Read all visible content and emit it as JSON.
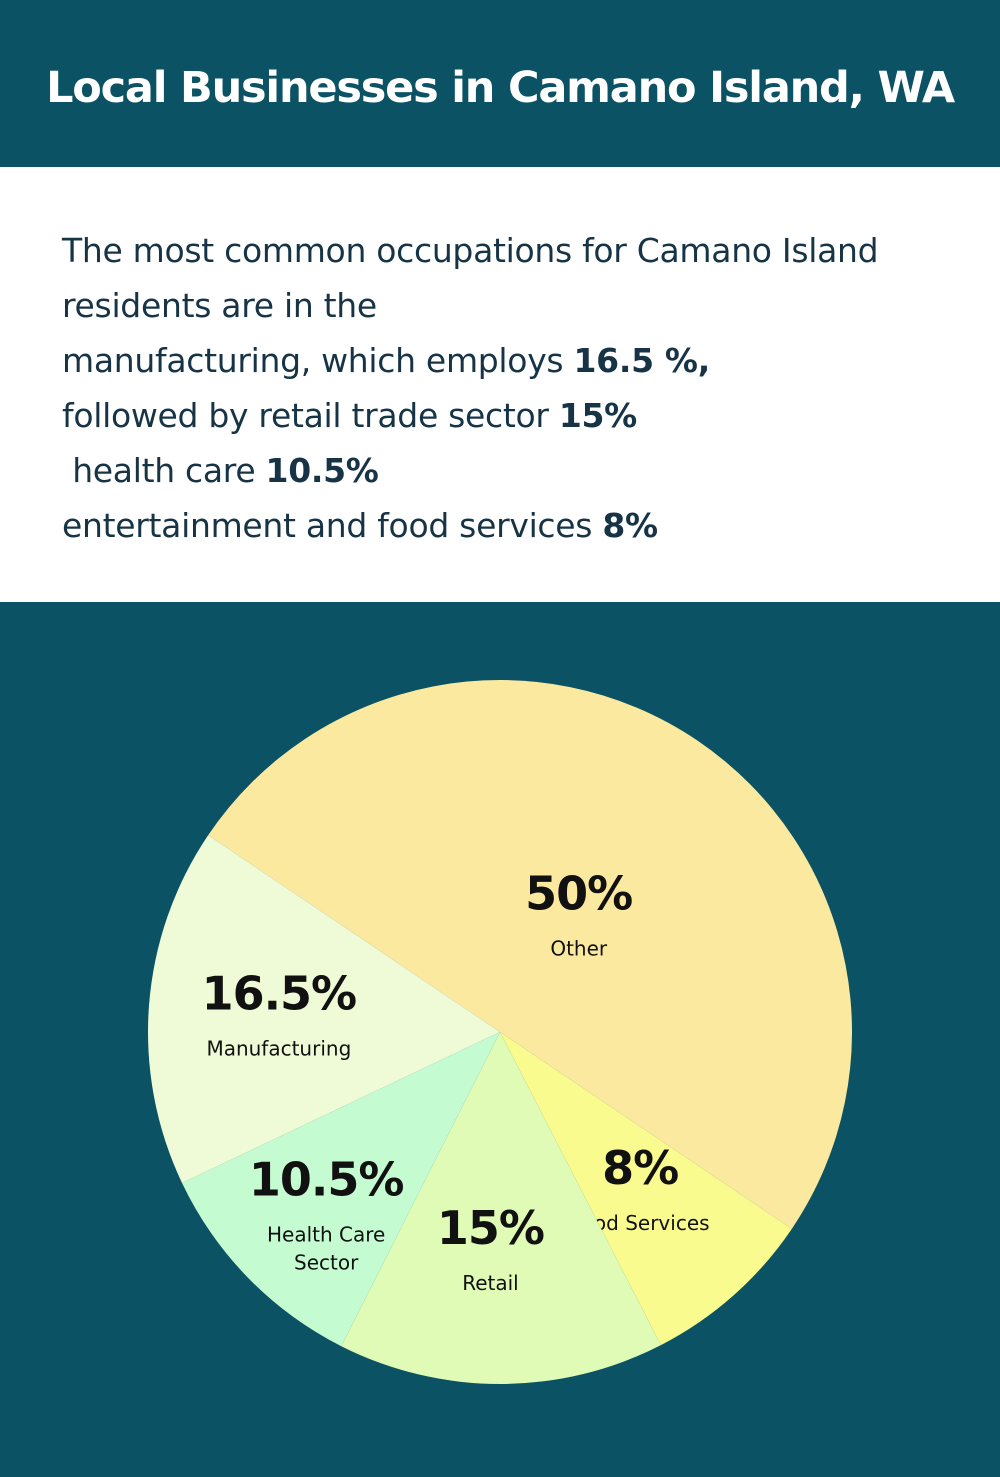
{
  "header": {
    "title": "Local Businesses in Camano Island, WA"
  },
  "intro": {
    "lines": [
      {
        "text": "The most common occupations for Camano Island",
        "bold": ""
      },
      {
        "text": "residents are in the",
        "bold": ""
      },
      {
        "text": "manufacturing, which employs ",
        "bold": "16.5 %,"
      },
      {
        "text": "followed by retail trade sector ",
        "bold": "15%"
      },
      {
        "text": " health care ",
        "bold": "10.5%"
      },
      {
        "text": "entertainment and food services ",
        "bold": "8%"
      }
    ]
  },
  "chart_data": {
    "type": "pie",
    "slices": [
      {
        "label": "Other",
        "value": 50,
        "value_label": "50%",
        "color": "#fce9a0"
      },
      {
        "label": "Food Services",
        "value": 8,
        "value_label": "8%",
        "color": "#f9fb8e"
      },
      {
        "label": "Retail",
        "value": 15,
        "value_label": "15%",
        "color": "#e0fbb5"
      },
      {
        "label": [
          "Health Care",
          "Sector"
        ],
        "value": 10.5,
        "value_label": "10.5%",
        "color": "#c5fbd1"
      },
      {
        "label": "Manufacturing",
        "value": 16.5,
        "value_label": "16.5%",
        "color": "#effbd7"
      }
    ]
  },
  "colors": {
    "panel_background": "#0a5264",
    "text": "#173447"
  }
}
